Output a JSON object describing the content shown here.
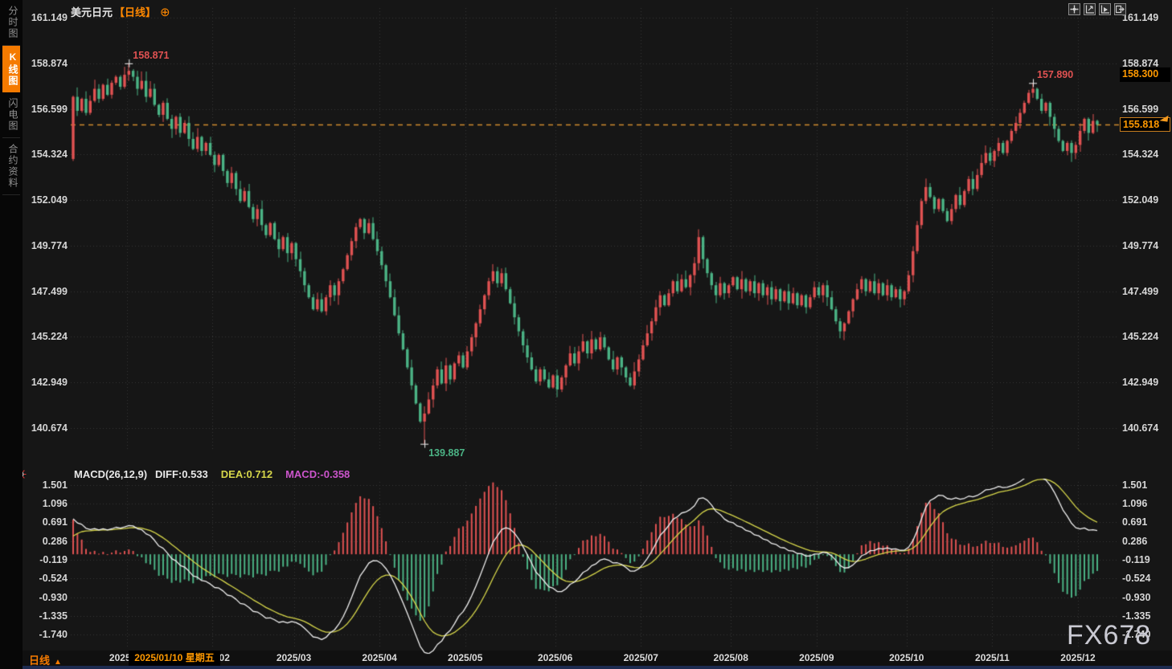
{
  "header": {
    "symbol": "美元日元",
    "period_tag": "【日线】",
    "add_icon": "⊕"
  },
  "sidebar": {
    "tabs": [
      {
        "label": "分时图",
        "active": false
      },
      {
        "label": "K线图",
        "active": true
      },
      {
        "label": "闪电图",
        "active": false
      },
      {
        "label": "合约资料",
        "active": false
      }
    ]
  },
  "toolbar": {
    "buttons": [
      "move",
      "scale-axis",
      "auto-fit",
      "detach"
    ]
  },
  "macd_header": {
    "title": "MACD(26,12,9)",
    "diff": "DIFF:0.533",
    "dea": "DEA:0.712",
    "macd": "MACD:-0.358"
  },
  "bottom": {
    "period": "日线",
    "period_arrow": "▲",
    "crosshair_date": "2025/01/10 星期五"
  },
  "right_axis": {
    "marker_high": "158.300",
    "marker_current": "155.818"
  },
  "watermark": "FX678",
  "chart_data": {
    "type": "candlestick",
    "title": "美元日元 日线",
    "price_ticks": [
      "161.149",
      "158.874",
      "156.599",
      "154.324",
      "152.049",
      "149.774",
      "147.499",
      "145.224",
      "142.949",
      "140.674"
    ],
    "macd_ticks": [
      "1.501",
      "1.096",
      "0.691",
      "0.286",
      "-0.119",
      "-0.524",
      "-0.930",
      "-1.335",
      "-1.740"
    ],
    "month_labels": [
      "2025/01",
      "2025/02",
      "2025/03",
      "2025/04",
      "2025/05",
      "2025/06",
      "2025/07",
      "2025/08",
      "2025/09",
      "2025/10",
      "2025/11",
      "2025/12"
    ],
    "month_boundaries": [
      13,
      33,
      52,
      72,
      92,
      113,
      133,
      154,
      174,
      195,
      215,
      235
    ],
    "current_price": 155.818,
    "marker_price": 158.3,
    "macd_values": {
      "diff": 0.533,
      "dea": 0.712,
      "macd": -0.358
    },
    "colors": {
      "up": "#e05252",
      "down": "#4bb385",
      "diff_line": "#f0f0f0",
      "dea_line": "#d6d64a",
      "macd_value": "#cc55cc",
      "accent": "#ff8800",
      "grid": "#3a3a3a",
      "current_line": "#cf8a2e"
    },
    "ohlc": {
      "first_open": 154.1,
      "closes": [
        157.2,
        156.5,
        157.1,
        156.4,
        157.0,
        157.6,
        157.1,
        157.8,
        157.3,
        157.9,
        158.2,
        157.7,
        158.3,
        158.5,
        158.2,
        157.6,
        158.0,
        157.2,
        157.6,
        156.8,
        156.3,
        156.9,
        156.1,
        155.6,
        156.2,
        155.4,
        155.9,
        155.1,
        154.6,
        155.2,
        154.5,
        154.9,
        154.3,
        153.8,
        154.3,
        153.5,
        152.9,
        153.4,
        152.6,
        152.0,
        152.5,
        151.7,
        151.1,
        151.6,
        150.8,
        150.3,
        150.9,
        150.1,
        149.6,
        150.2,
        149.4,
        149.9,
        149.1,
        148.5,
        147.8,
        147.2,
        146.6,
        147.1,
        146.5,
        147.2,
        147.8,
        147.3,
        148.0,
        148.6,
        149.3,
        150.0,
        150.7,
        151.1,
        150.4,
        150.9,
        150.1,
        149.5,
        148.8,
        148.0,
        147.2,
        146.3,
        145.4,
        144.6,
        143.7,
        142.8,
        141.9,
        141.0,
        141.4,
        142.1,
        142.8,
        143.6,
        142.9,
        143.8,
        143.1,
        143.9,
        144.3,
        143.7,
        144.5,
        145.2,
        145.9,
        146.6,
        147.3,
        148.0,
        148.5,
        147.9,
        148.4,
        147.6,
        146.9,
        146.2,
        145.5,
        144.8,
        144.2,
        143.6,
        143.0,
        143.6,
        143.1,
        142.7,
        143.3,
        142.6,
        143.2,
        143.8,
        144.4,
        143.9,
        144.5,
        145.0,
        144.4,
        145.1,
        144.6,
        145.2,
        144.7,
        144.1,
        143.6,
        144.2,
        143.7,
        143.2,
        142.8,
        143.5,
        144.1,
        144.8,
        145.4,
        146.0,
        146.7,
        147.3,
        146.8,
        147.4,
        148.0,
        147.5,
        148.1,
        147.7,
        148.3,
        148.9,
        150.2,
        149.1,
        148.4,
        147.8,
        147.3,
        147.9,
        147.4,
        147.8,
        148.2,
        147.6,
        148.1,
        147.5,
        148.0,
        147.4,
        147.9,
        147.3,
        147.7,
        147.1,
        147.6,
        147.0,
        147.5,
        146.9,
        147.4,
        146.8,
        147.3,
        146.7,
        147.2,
        147.7,
        147.3,
        147.8,
        147.2,
        146.6,
        146.0,
        145.5,
        145.9,
        146.5,
        147.1,
        147.6,
        148.1,
        147.5,
        148.0,
        147.4,
        147.9,
        147.3,
        147.8,
        147.2,
        147.6,
        147.1,
        147.5,
        148.3,
        149.5,
        150.8,
        152.0,
        152.7,
        152.2,
        151.6,
        152.1,
        151.5,
        151.0,
        151.6,
        152.3,
        151.8,
        152.5,
        153.1,
        152.6,
        153.3,
        153.9,
        154.4,
        154.0,
        154.5,
        154.9,
        154.4,
        155.0,
        155.5,
        155.9,
        156.4,
        156.9,
        157.4,
        157.6,
        157.1,
        156.5,
        156.9,
        156.2,
        155.6,
        155.0,
        154.5,
        154.9,
        154.4,
        154.8,
        155.5,
        156.1,
        155.4,
        156.0,
        155.818
      ],
      "overrides": {
        "0": {
          "low": 154.0
        },
        "13": {
          "high": 158.871
        },
        "82": {
          "low": 139.887
        },
        "224": {
          "high": 157.89
        }
      }
    },
    "annotations": [
      {
        "index": 13,
        "value": 158.871,
        "label": "158.871",
        "side": "high",
        "color": "#e05252"
      },
      {
        "index": 82,
        "value": 139.887,
        "label": "139.887",
        "side": "low",
        "color": "#4bb385"
      },
      {
        "index": 224,
        "value": 157.89,
        "label": "157.890",
        "side": "high",
        "color": "#e05252"
      }
    ]
  }
}
